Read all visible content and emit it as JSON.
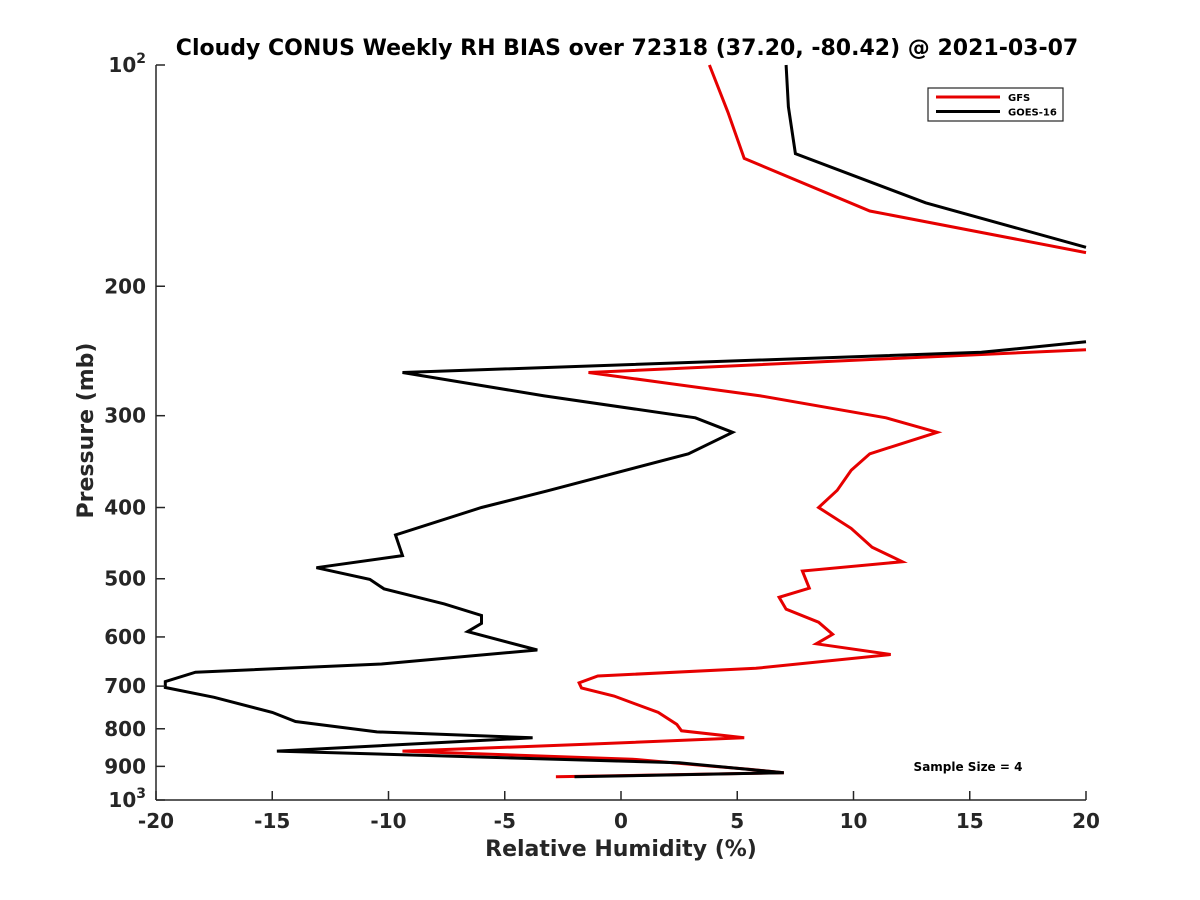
{
  "chart_data": {
    "type": "line",
    "title": "Cloudy CONUS Weekly RH BIAS over 72318 (37.20, -80.42) @ 2021-03-07",
    "xlabel": "Relative Humidity (%)",
    "ylabel": "Pressure (mb)",
    "xlim": [
      -20,
      20
    ],
    "ylim": [
      100,
      1000
    ],
    "y_scale": "log",
    "y_reversed": true,
    "x_ticks": [
      -20,
      -15,
      -10,
      -5,
      0,
      5,
      10,
      15,
      20
    ],
    "x_tick_labels": [
      "-20",
      "-15",
      "-10",
      "-5",
      "0",
      "5",
      "10",
      "15",
      "20"
    ],
    "y_ticks": [
      {
        "value": 100,
        "base": "10",
        "exp": "2"
      },
      {
        "value": 200,
        "label": "200"
      },
      {
        "value": 300,
        "label": "300"
      },
      {
        "value": 400,
        "label": "400"
      },
      {
        "value": 500,
        "label": "500"
      },
      {
        "value": 600,
        "label": "600"
      },
      {
        "value": 700,
        "label": "700"
      },
      {
        "value": 800,
        "label": "800"
      },
      {
        "value": 900,
        "label": "900"
      },
      {
        "value": 1000,
        "base": "10",
        "exp": "3"
      }
    ],
    "legend_position": "top-right",
    "annotation": "Sample Size = 4",
    "series": [
      {
        "name": "GFS",
        "color": "#e60000",
        "points": [
          [
            3.8,
            100
          ],
          [
            4.6,
            116
          ],
          [
            5.3,
            134
          ],
          [
            10.7,
            158
          ],
          [
            20,
            180
          ],
          [
            null,
            215
          ],
          [
            20,
            244
          ],
          [
            -1.4,
            262
          ],
          [
            6.0,
            282
          ],
          [
            11.4,
            302
          ],
          [
            13.6,
            316
          ],
          [
            10.7,
            338
          ],
          [
            9.9,
            356
          ],
          [
            9.3,
            379
          ],
          [
            8.5,
            400
          ],
          [
            9.9,
            427
          ],
          [
            10.8,
            453
          ],
          [
            12.1,
            474
          ],
          [
            7.8,
            488
          ],
          [
            8.1,
            515
          ],
          [
            6.8,
            530
          ],
          [
            7.1,
            550
          ],
          [
            8.5,
            573
          ],
          [
            9.1,
            595
          ],
          [
            8.4,
            613
          ],
          [
            11.6,
            634
          ],
          [
            5.8,
            662
          ],
          [
            -1.0,
            678
          ],
          [
            -1.8,
            693
          ],
          [
            -1.7,
            704
          ],
          [
            -0.3,
            722
          ],
          [
            1.6,
            760
          ],
          [
            2.4,
            789
          ],
          [
            2.6,
            805
          ],
          [
            5.3,
            823
          ],
          [
            -1.5,
            840
          ],
          [
            -9.4,
            858
          ],
          [
            0.5,
            880
          ],
          [
            4.0,
            900
          ],
          [
            5.5,
            908
          ],
          [
            7.0,
            918
          ],
          [
            -2.8,
            930
          ]
        ]
      },
      {
        "name": "GOES-16",
        "color": "#000000",
        "points": [
          [
            7.1,
            100
          ],
          [
            7.2,
            114
          ],
          [
            7.5,
            132
          ],
          [
            13.1,
            154
          ],
          [
            20,
            177
          ],
          [
            null,
            215
          ],
          [
            20,
            238
          ],
          [
            15.5,
            246
          ],
          [
            -9.4,
            262
          ],
          [
            -3.3,
            282
          ],
          [
            3.2,
            302
          ],
          [
            4.8,
            316
          ],
          [
            2.9,
            338
          ],
          [
            -3.2,
            380
          ],
          [
            -6.0,
            400
          ],
          [
            -9.7,
            436
          ],
          [
            -9.4,
            465
          ],
          [
            -13.1,
            483
          ],
          [
            -10.8,
            501
          ],
          [
            -10.2,
            516
          ],
          [
            -7.6,
            541
          ],
          [
            -6.0,
            561
          ],
          [
            -6.0,
            575
          ],
          [
            -6.6,
            590
          ],
          [
            -3.6,
            625
          ],
          [
            -10.3,
            653
          ],
          [
            -18.3,
            670
          ],
          [
            -19.6,
            690
          ],
          [
            -19.6,
            703
          ],
          [
            -17.5,
            725
          ],
          [
            -15.0,
            760
          ],
          [
            -14.0,
            782
          ],
          [
            -10.5,
            808
          ],
          [
            -3.8,
            823
          ],
          [
            -14.8,
            858
          ],
          [
            2.5,
            890
          ],
          [
            7.0,
            918
          ],
          [
            -2.0,
            930
          ]
        ]
      }
    ]
  }
}
